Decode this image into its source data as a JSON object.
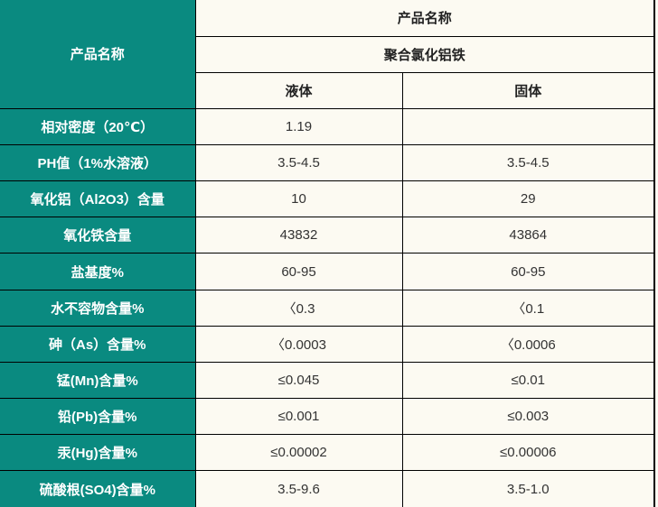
{
  "colors": {
    "header_bg": "#0a8a80",
    "body_bg": "#fcfaf2",
    "border": "#000000",
    "label_text": "#ffffff",
    "value_text": "#333333"
  },
  "header": {
    "corner_label": "产品名称",
    "product_name_label": "产品名称",
    "product_name_value": "聚合氯化铝铁",
    "col_liquid": "液体",
    "col_solid": "固体"
  },
  "rows": [
    {
      "label": "相对密度（20℃）",
      "liquid": "1.19",
      "solid": ""
    },
    {
      "label": "PH值（1%水溶液）",
      "liquid": "3.5-4.5",
      "solid": "3.5-4.5"
    },
    {
      "label": "氧化铝（Al2O3）含量",
      "liquid": "10",
      "solid": "29"
    },
    {
      "label": "氧化铁含量",
      "liquid": "43832",
      "solid": "43864"
    },
    {
      "label": "盐基度%",
      "liquid": "60-95",
      "solid": "60-95"
    },
    {
      "label": "水不容物含量%",
      "liquid": "〈0.3",
      "solid": "〈0.1"
    },
    {
      "label": "砷（As）含量%",
      "liquid": "〈0.0003",
      "solid": "〈0.0006"
    },
    {
      "label": "锰(Mn)含量%",
      "liquid": "≤0.045",
      "solid": "≤0.01"
    },
    {
      "label": "铅(Pb)含量%",
      "liquid": "≤0.001",
      "solid": "≤0.003"
    },
    {
      "label": "汞(Hg)含量%",
      "liquid": "≤0.00002",
      "solid": "≤0.00006"
    },
    {
      "label": "硫酸根(SO4)含量%",
      "liquid": "3.5-9.6",
      "solid": "3.5-1.0"
    }
  ]
}
